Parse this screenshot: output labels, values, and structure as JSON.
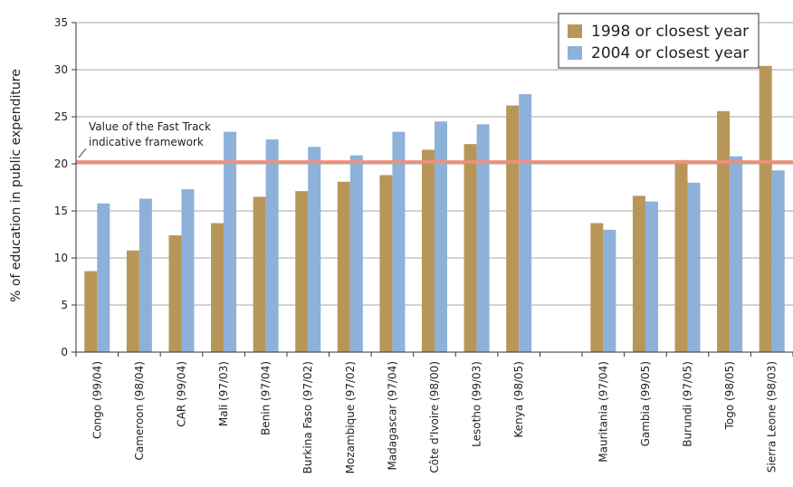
{
  "chart_data": {
    "type": "bar",
    "title": "",
    "xlabel": "",
    "ylabel": "% of education in public expenditure",
    "ylim": [
      0,
      35
    ],
    "yticks": [
      0,
      5,
      10,
      15,
      20,
      25,
      30,
      35
    ],
    "grid": true,
    "legend_position": "top-right",
    "categories": [
      "Congo (99/04)",
      "Cameroon (98/04)",
      "CAR (99/04)",
      "Mali (97/03)",
      "Benin (97/04)",
      "Burkina Faso (97/02)",
      "Mozambique (97/02)",
      "Madagascar (97/04)",
      "Côte d'Ivoire (98/00)",
      "Lesotho (99/03)",
      "Kenya (98/05)",
      "",
      "Mauritania (97/04)",
      "Gambia (99/05)",
      "Burundi (97/05)",
      "Togo (98/05)",
      "Sierra Leone (98/03)"
    ],
    "series": [
      {
        "name": "1998 or closest year",
        "color": "#b8965a",
        "values": [
          8.6,
          10.8,
          12.4,
          13.7,
          16.5,
          17.1,
          18.1,
          18.8,
          21.5,
          22.1,
          26.2,
          null,
          13.7,
          16.6,
          20.4,
          25.6,
          30.4
        ]
      },
      {
        "name": "2004 or closest year",
        "color": "#8db1d9",
        "values": [
          15.8,
          16.3,
          17.3,
          23.4,
          22.6,
          21.8,
          20.9,
          23.4,
          24.5,
          24.2,
          27.4,
          null,
          13.0,
          16.0,
          18.0,
          20.8,
          19.3
        ]
      }
    ],
    "reference_line": {
      "value": 20.2,
      "label_line1": "Value of the Fast Track",
      "label_line2": "indicative framework",
      "color": "#f0907a"
    }
  }
}
